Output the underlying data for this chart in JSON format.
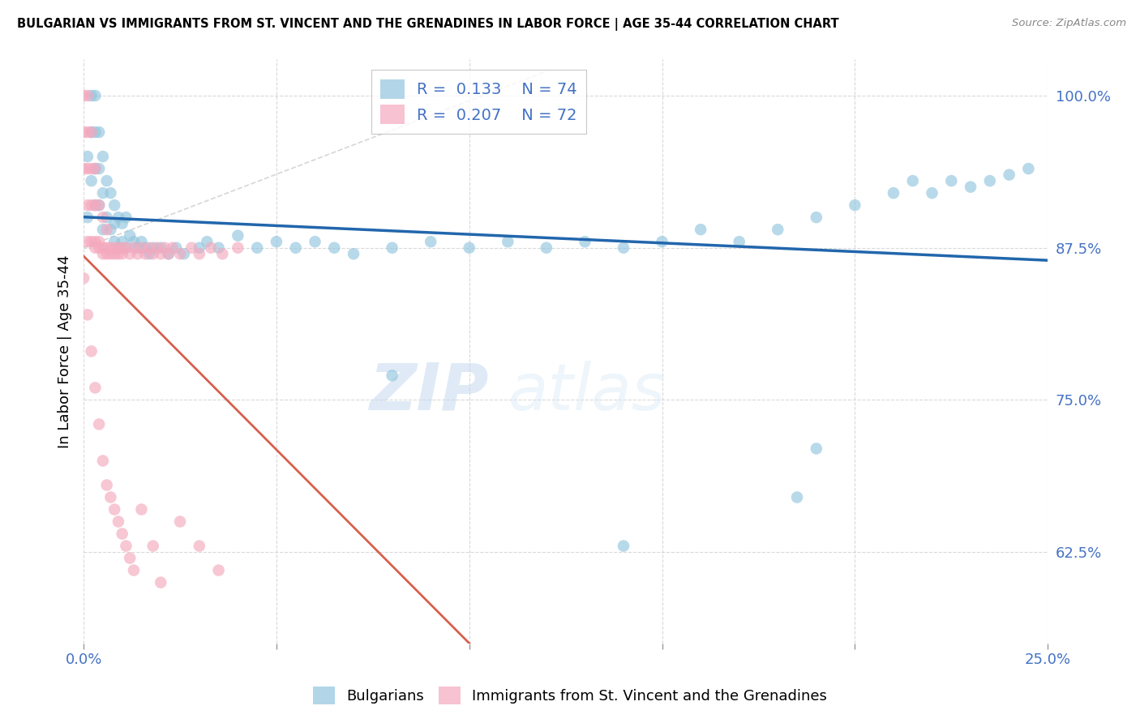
{
  "title": "BULGARIAN VS IMMIGRANTS FROM ST. VINCENT AND THE GRENADINES IN LABOR FORCE | AGE 35-44 CORRELATION CHART",
  "source": "Source: ZipAtlas.com",
  "ylabel": "In Labor Force | Age 35-44",
  "xmin": 0.0,
  "xmax": 0.25,
  "ymin": 0.55,
  "ymax": 1.03,
  "yticks": [
    0.625,
    0.75,
    0.875,
    1.0
  ],
  "ytick_labels": [
    "62.5%",
    "75.0%",
    "87.5%",
    "100.0%"
  ],
  "xticks": [
    0.0,
    0.05,
    0.1,
    0.15,
    0.2,
    0.25
  ],
  "xtick_labels": [
    "0.0%",
    "",
    "",
    "",
    "",
    "25.0%"
  ],
  "blue_R": 0.133,
  "blue_N": 74,
  "pink_R": 0.207,
  "pink_N": 72,
  "blue_color": "#92c5de",
  "pink_color": "#f4a9be",
  "blue_line_color": "#2166ac",
  "pink_line_color": "#d6604d",
  "watermark_zip": "ZIP",
  "watermark_atlas": "atlas",
  "legend_blue_label": "Bulgarians",
  "legend_pink_label": "Immigrants from St. Vincent and the Grenadines",
  "blue_x": [
    0.001,
    0.001,
    0.002,
    0.002,
    0.002,
    0.003,
    0.003,
    0.003,
    0.003,
    0.004,
    0.004,
    0.004,
    0.005,
    0.005,
    0.005,
    0.006,
    0.006,
    0.007,
    0.007,
    0.008,
    0.008,
    0.008,
    0.009,
    0.009,
    0.01,
    0.01,
    0.011,
    0.011,
    0.012,
    0.013,
    0.014,
    0.015,
    0.016,
    0.017,
    0.018,
    0.02,
    0.022,
    0.024,
    0.026,
    0.03,
    0.032,
    0.035,
    0.04,
    0.045,
    0.05,
    0.055,
    0.06,
    0.065,
    0.07,
    0.08,
    0.09,
    0.1,
    0.11,
    0.12,
    0.13,
    0.14,
    0.15,
    0.16,
    0.17,
    0.18,
    0.19,
    0.2,
    0.21,
    0.215,
    0.22,
    0.225,
    0.23,
    0.235,
    0.24,
    0.245,
    0.08,
    0.19,
    0.185,
    0.14
  ],
  "blue_y": [
    0.9,
    0.95,
    1.0,
    0.97,
    0.93,
    1.0,
    0.97,
    0.94,
    0.91,
    0.97,
    0.94,
    0.91,
    0.95,
    0.92,
    0.89,
    0.93,
    0.9,
    0.92,
    0.89,
    0.91,
    0.895,
    0.88,
    0.9,
    0.875,
    0.895,
    0.88,
    0.9,
    0.875,
    0.885,
    0.88,
    0.875,
    0.88,
    0.875,
    0.87,
    0.875,
    0.875,
    0.87,
    0.875,
    0.87,
    0.875,
    0.88,
    0.875,
    0.885,
    0.875,
    0.88,
    0.875,
    0.88,
    0.875,
    0.87,
    0.875,
    0.88,
    0.875,
    0.88,
    0.875,
    0.88,
    0.875,
    0.88,
    0.89,
    0.88,
    0.89,
    0.9,
    0.91,
    0.92,
    0.93,
    0.92,
    0.93,
    0.925,
    0.93,
    0.935,
    0.94,
    0.77,
    0.71,
    0.67,
    0.63
  ],
  "pink_x": [
    0.0,
    0.0,
    0.0,
    0.001,
    0.001,
    0.001,
    0.001,
    0.001,
    0.002,
    0.002,
    0.002,
    0.002,
    0.003,
    0.003,
    0.003,
    0.003,
    0.004,
    0.004,
    0.004,
    0.005,
    0.005,
    0.005,
    0.006,
    0.006,
    0.006,
    0.007,
    0.007,
    0.008,
    0.008,
    0.009,
    0.009,
    0.01,
    0.01,
    0.011,
    0.012,
    0.013,
    0.014,
    0.015,
    0.016,
    0.017,
    0.018,
    0.019,
    0.02,
    0.021,
    0.022,
    0.023,
    0.025,
    0.028,
    0.03,
    0.033,
    0.036,
    0.04,
    0.0,
    0.001,
    0.002,
    0.003,
    0.004,
    0.005,
    0.006,
    0.007,
    0.008,
    0.009,
    0.01,
    0.011,
    0.012,
    0.013,
    0.015,
    0.018,
    0.02,
    0.025,
    0.03,
    0.035
  ],
  "pink_y": [
    1.0,
    0.97,
    0.94,
    1.0,
    0.97,
    0.94,
    0.91,
    0.88,
    0.97,
    0.94,
    0.91,
    0.88,
    0.94,
    0.91,
    0.88,
    0.875,
    0.91,
    0.88,
    0.875,
    0.9,
    0.875,
    0.87,
    0.89,
    0.875,
    0.87,
    0.875,
    0.87,
    0.875,
    0.87,
    0.875,
    0.87,
    0.875,
    0.87,
    0.875,
    0.87,
    0.875,
    0.87,
    0.875,
    0.87,
    0.875,
    0.87,
    0.875,
    0.87,
    0.875,
    0.87,
    0.875,
    0.87,
    0.875,
    0.87,
    0.875,
    0.87,
    0.875,
    0.85,
    0.82,
    0.79,
    0.76,
    0.73,
    0.7,
    0.68,
    0.67,
    0.66,
    0.65,
    0.64,
    0.63,
    0.62,
    0.61,
    0.66,
    0.63,
    0.6,
    0.65,
    0.63,
    0.61
  ]
}
